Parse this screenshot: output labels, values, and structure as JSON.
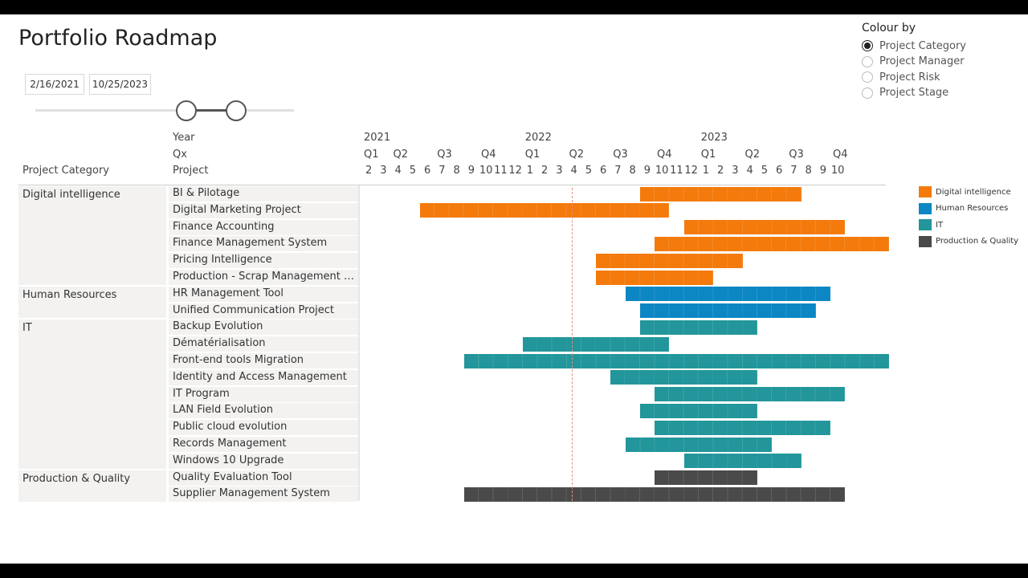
{
  "report": {
    "title": "Portfolio Roadmap",
    "date_start": "2/16/2021",
    "date_end": "10/25/2023"
  },
  "colour_by": {
    "title": "Colour by",
    "options": [
      {
        "label": "Project Category",
        "checked": true
      },
      {
        "label": "Project Manager",
        "checked": false
      },
      {
        "label": "Project Risk",
        "checked": false
      },
      {
        "label": "Project Stage",
        "checked": false
      }
    ]
  },
  "headers": {
    "year": "Year",
    "quarter": "Qx",
    "project": "Project",
    "category": "Project Category"
  },
  "timeline": {
    "years": [
      "2021",
      "2022",
      "2023"
    ],
    "quarters": [
      "Q1",
      "Q2",
      "Q3",
      "Q4",
      "Q1",
      "Q2",
      "Q3",
      "Q4",
      "Q1",
      "Q2",
      "Q3",
      "Q4"
    ],
    "months": [
      "2",
      "3",
      "4",
      "5",
      "6",
      "7",
      "8",
      "9",
      "10",
      "11",
      "12",
      "1",
      "2",
      "3",
      "4",
      "5",
      "6",
      "7",
      "8",
      "9",
      "10",
      "11",
      "12",
      "1",
      "2",
      "3",
      "4",
      "5",
      "6",
      "7",
      "8",
      "9",
      "10"
    ],
    "today_month_index": 13
  },
  "colors": {
    "Digital intelligence": "#f47a0c",
    "Human Resources": "#0c87c4",
    "IT": "#22969a",
    "Production & Quality": "#4a4a4a"
  },
  "categories": [
    {
      "name": "Digital intelligence",
      "rows": 6
    },
    {
      "name": "Human Resources",
      "rows": 2
    },
    {
      "name": "IT",
      "rows": 9
    },
    {
      "name": "Production & Quality",
      "rows": 2
    }
  ],
  "projects": [
    {
      "name": "BI & Pilotage",
      "category": "Digital intelligence",
      "start": 19,
      "end": 30
    },
    {
      "name": "Digital Marketing Project",
      "category": "Digital intelligence",
      "start": 4,
      "end": 21
    },
    {
      "name": "Finance Accounting",
      "category": "Digital intelligence",
      "start": 22,
      "end": 33
    },
    {
      "name": "Finance Management System",
      "category": "Digital intelligence",
      "start": 20,
      "end": 36
    },
    {
      "name": "Pricing Intelligence",
      "category": "Digital intelligence",
      "start": 16,
      "end": 26
    },
    {
      "name": "Production - Scrap Management Sy...",
      "category": "Digital intelligence",
      "start": 16,
      "end": 24
    },
    {
      "name": "HR Management Tool",
      "category": "Human Resources",
      "start": 18,
      "end": 32
    },
    {
      "name": "Unified Communication Project",
      "category": "Human Resources",
      "start": 19,
      "end": 31
    },
    {
      "name": "Backup Evolution",
      "category": "IT",
      "start": 19,
      "end": 27
    },
    {
      "name": "Dématérialisation",
      "category": "IT",
      "start": 11,
      "end": 21
    },
    {
      "name": "Front-end tools Migration",
      "category": "IT",
      "start": 7,
      "end": 36
    },
    {
      "name": "Identity and Access Management",
      "category": "IT",
      "start": 17,
      "end": 27
    },
    {
      "name": "IT Program",
      "category": "IT",
      "start": 20,
      "end": 33
    },
    {
      "name": "LAN Field Evolution",
      "category": "IT",
      "start": 19,
      "end": 27
    },
    {
      "name": "Public cloud evolution",
      "category": "IT",
      "start": 20,
      "end": 32
    },
    {
      "name": "Records Management",
      "category": "IT",
      "start": 18,
      "end": 28
    },
    {
      "name": "Windows 10 Upgrade",
      "category": "IT",
      "start": 22,
      "end": 30
    },
    {
      "name": "Quality Evaluation Tool",
      "category": "Production & Quality",
      "start": 20,
      "end": 27
    },
    {
      "name": "Supplier Management System",
      "category": "Production & Quality",
      "start": 7,
      "end": 33
    }
  ],
  "legend": [
    {
      "label": "Digital intelligence",
      "color": "#f47a0c"
    },
    {
      "label": "Human Resources",
      "color": "#0c87c4"
    },
    {
      "label": "IT",
      "color": "#22969a"
    },
    {
      "label": "Production & Quality",
      "color": "#4a4a4a"
    }
  ]
}
